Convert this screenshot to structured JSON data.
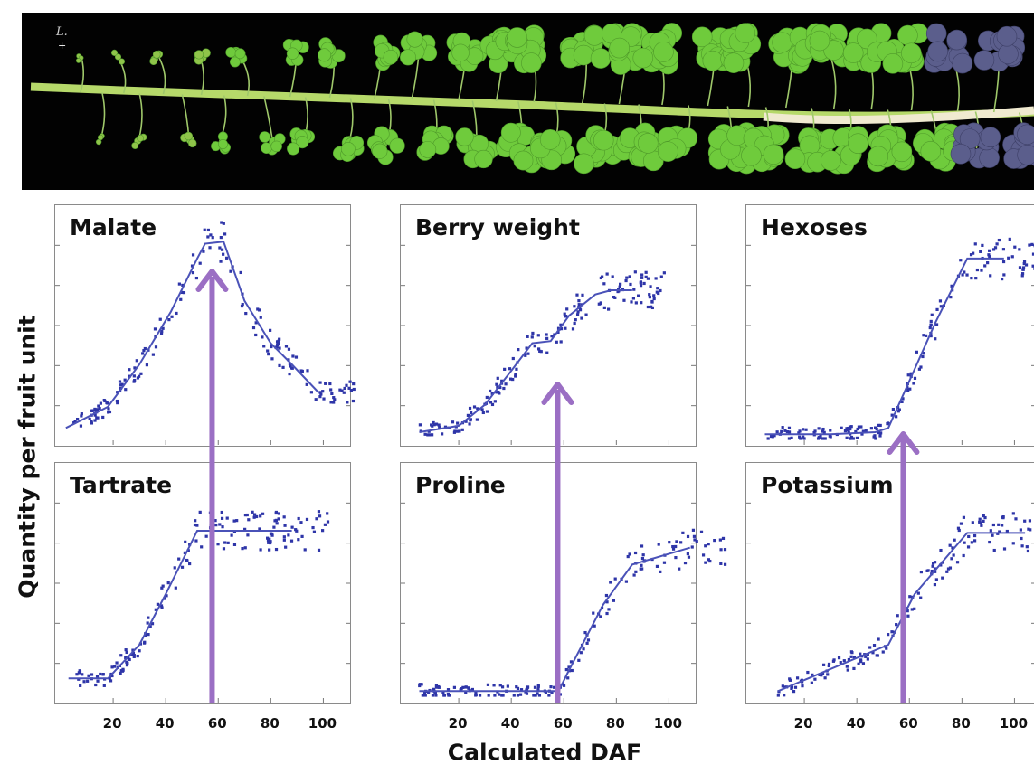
{
  "photo": {
    "corner_mark": "L.",
    "corner_symbol": "+"
  },
  "axis": {
    "y_label": "Quantity per fruit unit",
    "x_label": "Calculated DAF",
    "x_ticks": [
      "20",
      "40",
      "60",
      "80",
      "100"
    ]
  },
  "colors": {
    "points": "#2e35a8",
    "fit_line": "#4a52b8",
    "arrow": "#9b6fc4",
    "frame": "#8a8a8a"
  },
  "chart_data": [
    {
      "type": "scatter",
      "title": "Malate",
      "xlim": [
        0,
        115
      ],
      "fit": [
        [
          2,
          0.05
        ],
        [
          18,
          0.15
        ],
        [
          30,
          0.35
        ],
        [
          42,
          0.6
        ],
        [
          52,
          0.85
        ],
        [
          55,
          0.92
        ],
        [
          62,
          0.93
        ],
        [
          70,
          0.65
        ],
        [
          80,
          0.45
        ],
        [
          88,
          0.35
        ],
        [
          98,
          0.22
        ]
      ],
      "ylim": [
        0,
        1
      ]
    },
    {
      "type": "scatter",
      "title": "Berry weight",
      "xlim": [
        0,
        115
      ],
      "fit": [
        [
          5,
          0.03
        ],
        [
          20,
          0.06
        ],
        [
          30,
          0.16
        ],
        [
          40,
          0.32
        ],
        [
          48,
          0.45
        ],
        [
          55,
          0.46
        ],
        [
          62,
          0.58
        ],
        [
          72,
          0.68
        ],
        [
          78,
          0.7
        ],
        [
          86,
          0.7
        ]
      ],
      "ylim": [
        0,
        1
      ]
    },
    {
      "type": "scatter",
      "title": "Hexoses",
      "xlim": [
        0,
        115
      ],
      "fit": [
        [
          5,
          0.02
        ],
        [
          30,
          0.02
        ],
        [
          47,
          0.03
        ],
        [
          52,
          0.05
        ],
        [
          70,
          0.55
        ],
        [
          82,
          0.85
        ],
        [
          96,
          0.85
        ]
      ],
      "ylim": [
        0,
        1
      ]
    },
    {
      "type": "scatter",
      "title": "Tartrate",
      "xlim": [
        0,
        115
      ],
      "fit": [
        [
          3,
          0.08
        ],
        [
          18,
          0.08
        ],
        [
          30,
          0.24
        ],
        [
          40,
          0.48
        ],
        [
          48,
          0.68
        ],
        [
          52,
          0.78
        ],
        [
          56,
          0.78
        ],
        [
          88,
          0.78
        ]
      ],
      "ylim": [
        0,
        1
      ]
    },
    {
      "type": "scatter",
      "title": "Proline",
      "xlim": [
        0,
        115
      ],
      "fit": [
        [
          5,
          0.02
        ],
        [
          58,
          0.02
        ],
        [
          62,
          0.12
        ],
        [
          75,
          0.43
        ],
        [
          86,
          0.62
        ],
        [
          108,
          0.7
        ]
      ],
      "ylim": [
        0,
        1
      ]
    },
    {
      "type": "scatter",
      "title": "Potassium",
      "xlim": [
        0,
        115
      ],
      "fit": [
        [
          10,
          0.02
        ],
        [
          52,
          0.24
        ],
        [
          62,
          0.48
        ],
        [
          82,
          0.77
        ],
        [
          104,
          0.77
        ]
      ],
      "ylim": [
        0,
        1
      ]
    }
  ]
}
